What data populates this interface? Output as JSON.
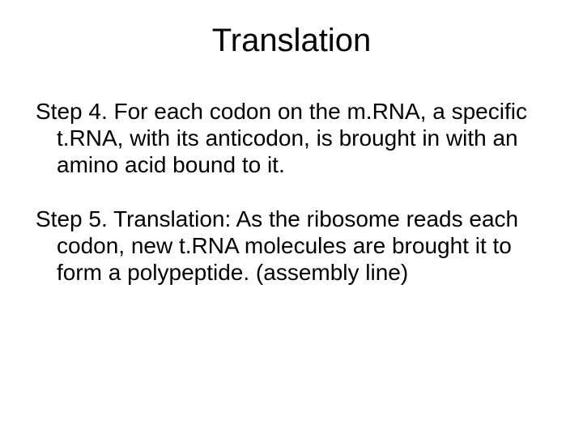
{
  "slide": {
    "title": "Translation",
    "title_fontsize": 40,
    "title_color": "#000000",
    "body_fontsize": 28,
    "body_color": "#000000",
    "line_height": 1.18,
    "background_color": "#ffffff",
    "paragraphs": [
      "Step 4.  For each codon  on the m.RNA, a specific t.RNA, with its anticodon, is brought in with an amino acid bound to it.",
      "Step 5.  Translation: As the ribosome reads each codon, new t.RNA molecules are brought it to form a polypeptide. (assembly line)"
    ]
  }
}
